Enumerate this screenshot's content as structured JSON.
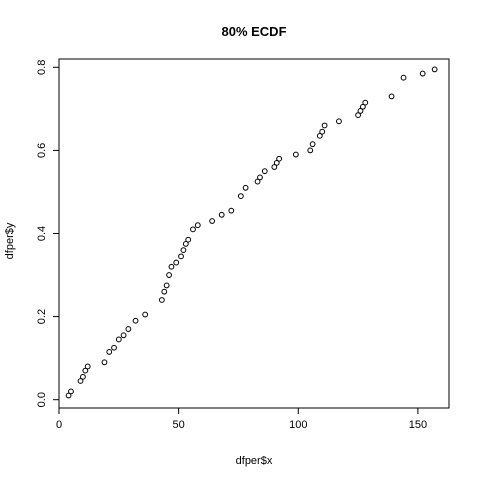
{
  "chart_data": {
    "type": "scatter",
    "title": "80% ECDF",
    "xlabel": "dfper$x",
    "ylabel": "dfper$y",
    "xlim": [
      0,
      163
    ],
    "ylim": [
      -0.02,
      0.82
    ],
    "xticks": [
      0,
      50,
      100,
      150
    ],
    "yticks": [
      0.0,
      0.2,
      0.4,
      0.6,
      0.8
    ],
    "xtick_labels": [
      "0",
      "50",
      "100",
      "150"
    ],
    "ytick_labels": [
      "0.0",
      "0.2",
      "0.4",
      "0.6",
      "0.8"
    ],
    "grid": false,
    "marker": "open-circle",
    "points": [
      {
        "x": 4,
        "y": 0.01
      },
      {
        "x": 5,
        "y": 0.02
      },
      {
        "x": 9,
        "y": 0.045
      },
      {
        "x": 10,
        "y": 0.055
      },
      {
        "x": 11,
        "y": 0.07
      },
      {
        "x": 12,
        "y": 0.08
      },
      {
        "x": 19,
        "y": 0.09
      },
      {
        "x": 21,
        "y": 0.115
      },
      {
        "x": 23,
        "y": 0.125
      },
      {
        "x": 25,
        "y": 0.145
      },
      {
        "x": 27,
        "y": 0.155
      },
      {
        "x": 29,
        "y": 0.17
      },
      {
        "x": 32,
        "y": 0.19
      },
      {
        "x": 36,
        "y": 0.205
      },
      {
        "x": 43,
        "y": 0.24
      },
      {
        "x": 44,
        "y": 0.26
      },
      {
        "x": 45,
        "y": 0.275
      },
      {
        "x": 46,
        "y": 0.3
      },
      {
        "x": 47,
        "y": 0.32
      },
      {
        "x": 49,
        "y": 0.33
      },
      {
        "x": 51,
        "y": 0.345
      },
      {
        "x": 52,
        "y": 0.36
      },
      {
        "x": 53,
        "y": 0.375
      },
      {
        "x": 54,
        "y": 0.385
      },
      {
        "x": 56,
        "y": 0.41
      },
      {
        "x": 58,
        "y": 0.42
      },
      {
        "x": 64,
        "y": 0.43
      },
      {
        "x": 68,
        "y": 0.445
      },
      {
        "x": 72,
        "y": 0.455
      },
      {
        "x": 76,
        "y": 0.49
      },
      {
        "x": 78,
        "y": 0.51
      },
      {
        "x": 83,
        "y": 0.525
      },
      {
        "x": 84,
        "y": 0.535
      },
      {
        "x": 86,
        "y": 0.55
      },
      {
        "x": 90,
        "y": 0.56
      },
      {
        "x": 91,
        "y": 0.57
      },
      {
        "x": 92,
        "y": 0.58
      },
      {
        "x": 99,
        "y": 0.59
      },
      {
        "x": 105,
        "y": 0.6
      },
      {
        "x": 106,
        "y": 0.615
      },
      {
        "x": 109,
        "y": 0.635
      },
      {
        "x": 110,
        "y": 0.645
      },
      {
        "x": 111,
        "y": 0.66
      },
      {
        "x": 117,
        "y": 0.67
      },
      {
        "x": 125,
        "y": 0.685
      },
      {
        "x": 126,
        "y": 0.695
      },
      {
        "x": 127,
        "y": 0.705
      },
      {
        "x": 128,
        "y": 0.715
      },
      {
        "x": 139,
        "y": 0.73
      },
      {
        "x": 144,
        "y": 0.775
      },
      {
        "x": 152,
        "y": 0.785
      },
      {
        "x": 157,
        "y": 0.795
      }
    ]
  }
}
